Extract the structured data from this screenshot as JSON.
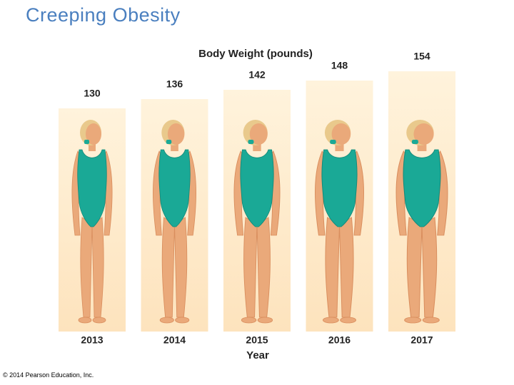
{
  "title": "Creeping Obesity",
  "chart_data": {
    "type": "pictograph",
    "title": "Body Weight (pounds)",
    "x_label": "Year",
    "categories": [
      "2013",
      "2014",
      "2015",
      "2016",
      "2017"
    ],
    "values": [
      130,
      136,
      142,
      148,
      154
    ],
    "color": "#fde9c8"
  },
  "footer": "© 2014 Pearson Education, Inc."
}
